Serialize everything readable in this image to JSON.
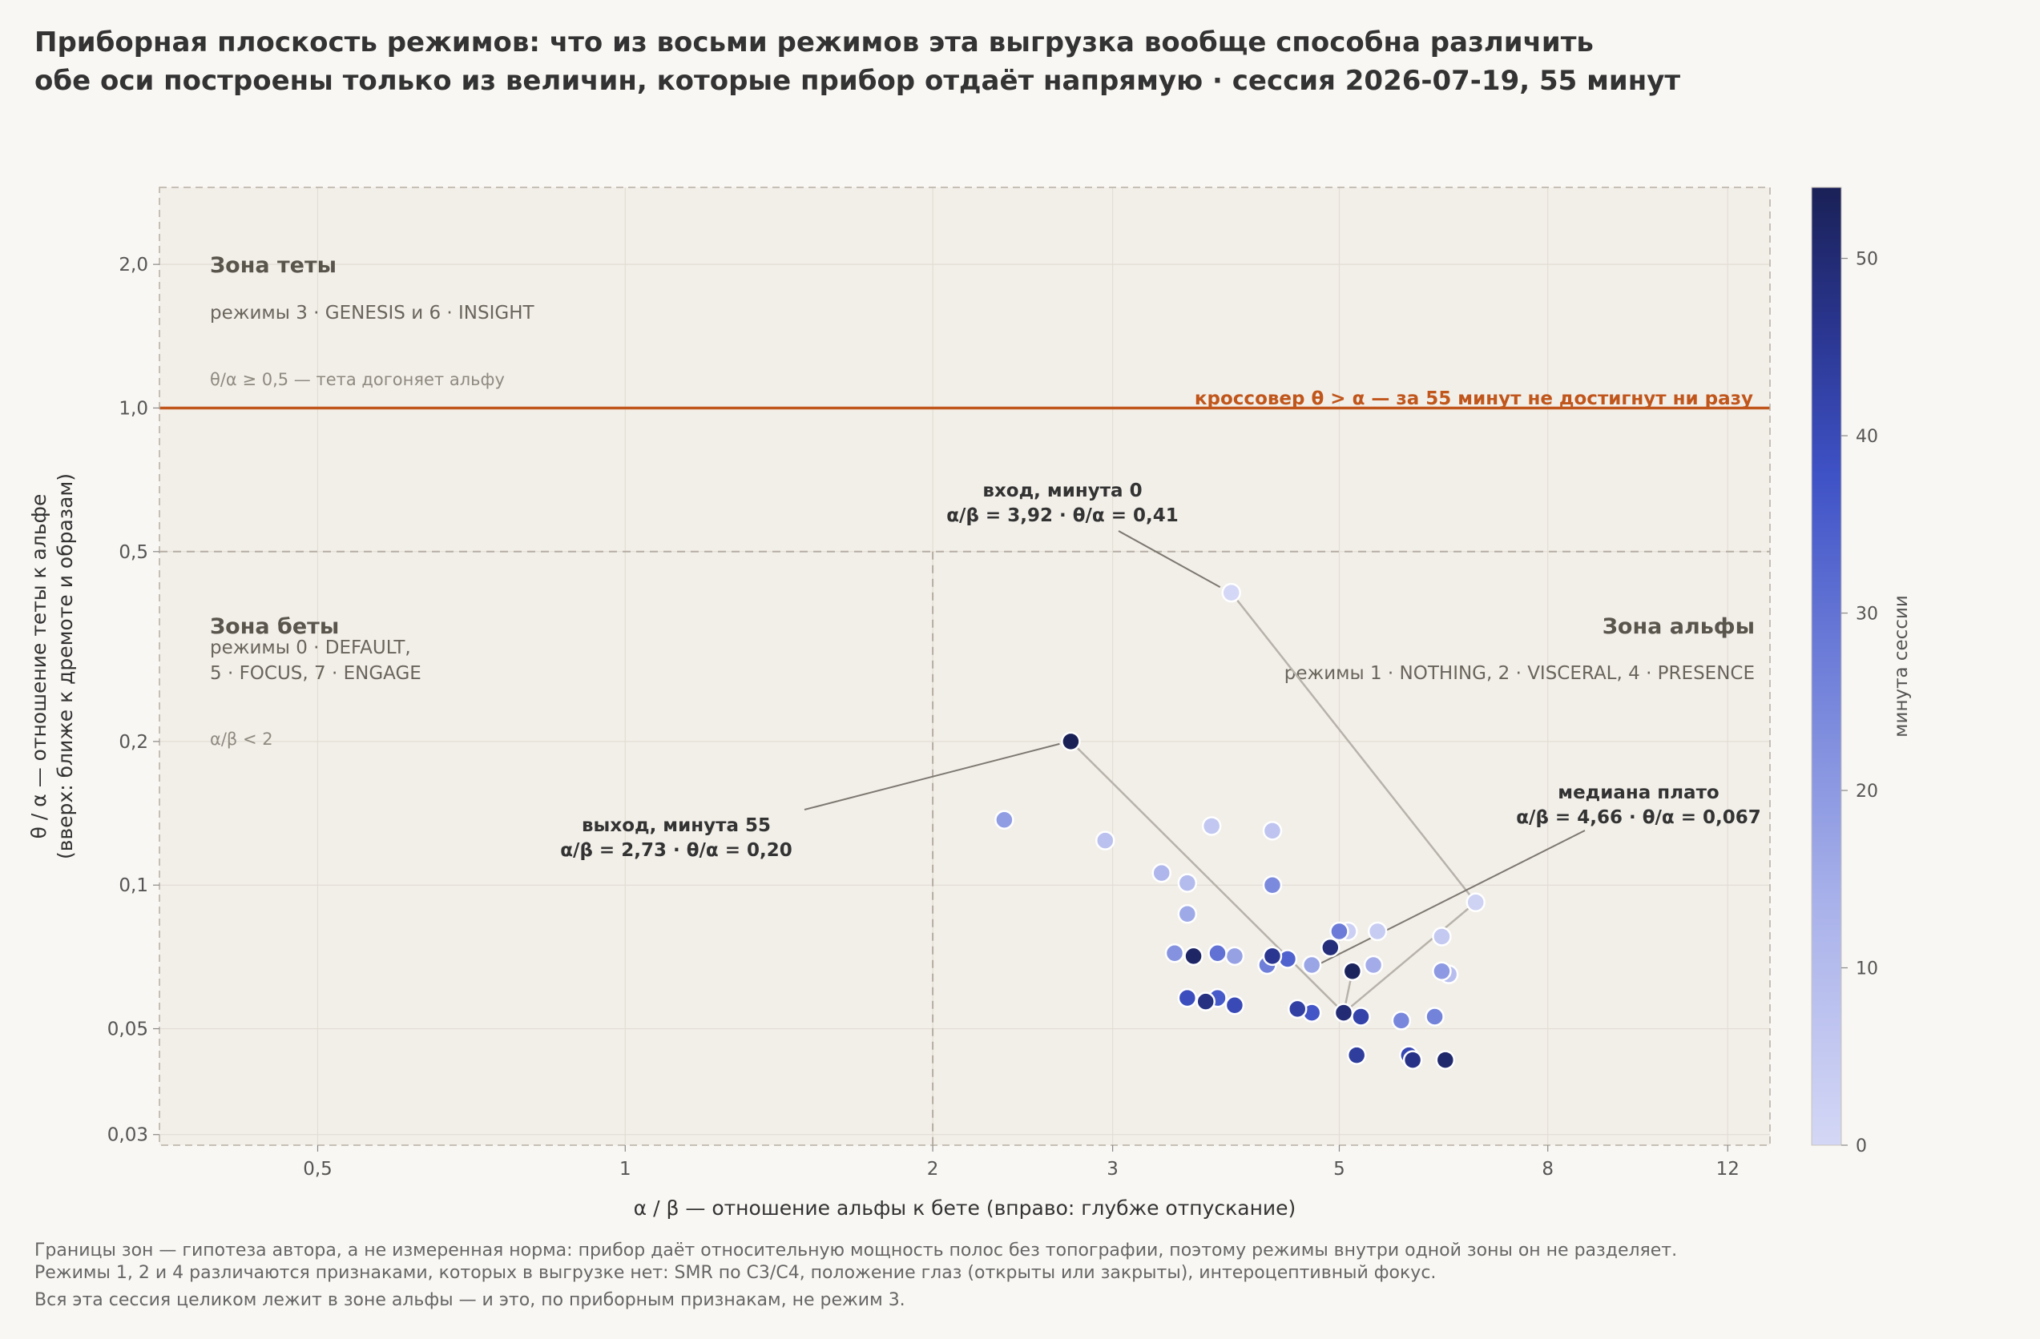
{
  "title": {
    "line1": "Приборная плоскость режимов: что из восьми режимов эта выгрузка вообще способна различить",
    "line2": "обе оси построены только из величин, которые прибор отдаёт напрямую · сессия 2026-07-19, 55 минут"
  },
  "colors": {
    "background": "#f9f7f3",
    "plot_bg": "#f2efe9",
    "crossover": "#c0561b",
    "colormap": [
      "#d4d7f5",
      "#8c98e0",
      "#4a5fcf",
      "#2d3b9c",
      "#1a2157"
    ]
  },
  "zones": {
    "theta": {
      "title": "Зона теты",
      "modes": "режимы  3 · GENESIS   и   6 · INSIGHT",
      "rule": "θ/α ≥ 0,5 — тета догоняет альфу"
    },
    "beta": {
      "title": "Зона беты",
      "modes_line1": "режимы  0 · DEFAULT,",
      "modes_line2": "5 · FOCUS,  7 · ENGAGE",
      "rule": "α/β < 2"
    },
    "alpha": {
      "title": "Зона альфы",
      "modes": "режимы  1 · NOTHING,  2 · VISCERAL,  4 · PRESENCE"
    }
  },
  "annotations": {
    "crossover": "кроссовер θ > α — за 55 минут не достигнут ни разу",
    "entry_line1": "вход, минута 0",
    "entry_line2": "α/β = 3,92 · θ/α = 0,41",
    "exit_line1": "выход, минута 55",
    "exit_line2": "α/β = 2,73 · θ/α = 0,20",
    "median_line1": "медиана плато",
    "median_line2": "α/β = 4,66 · θ/α = 0,067"
  },
  "footnote": {
    "line1": "Границы зон — гипотеза автора, а не измеренная норма: прибор даёт относительную мощность полос без топографии, поэтому режимы внутри одной зоны он не разделяет.",
    "line2": "Режимы 1, 2 и 4 различаются признаками, которых в выгрузке нет: SMR по C3/C4, положение глаз (открыты или закрыты), интероцептивный фокус.",
    "line3": "Вся эта сессия целиком лежит в зоне альфы — и это, по приборным признакам, не режим 3."
  },
  "chart_data": {
    "type": "scatter",
    "xlabel": "α / β  —  отношение альфы к бете   (вправо: глубже отпускание)",
    "ylabel_line1": "θ / α  —  отношение теты к альфе",
    "ylabel_line2": "(вверх: ближе к дремоте и образам)",
    "x_scale": "log",
    "y_scale": "log",
    "xlim": [
      0.35,
      13.2
    ],
    "ylim": [
      0.0285,
      2.9
    ],
    "x_ticks": [
      0.5,
      1,
      2,
      3,
      5,
      8,
      12
    ],
    "x_tick_labels": [
      "0,5",
      "1",
      "2",
      "3",
      "5",
      "8",
      "12"
    ],
    "y_ticks": [
      0.03,
      0.05,
      0.1,
      0.2,
      0.5,
      1.0,
      2.0
    ],
    "y_tick_labels": [
      "0,03",
      "0,05",
      "0,1",
      "0,2",
      "0,5",
      "1,0",
      "2,0"
    ],
    "grid": true,
    "zone_boundaries": {
      "x": 2,
      "y": 0.5
    },
    "crossover_y": 1.0,
    "colorbar": {
      "label": "минута сессии",
      "min": 0,
      "max": 54,
      "ticks": [
        0,
        10,
        20,
        30,
        40,
        50
      ],
      "tick_labels": [
        "0",
        "10",
        "20",
        "30",
        "40",
        "50"
      ]
    },
    "series": [
      {
        "points": [
          {
            "x": 3.92,
            "y": 0.41,
            "c": 0
          },
          {
            "x": 6.8,
            "y": 0.092,
            "c": 2
          },
          {
            "x": 5.1,
            "y": 0.08,
            "c": 3
          },
          {
            "x": 5.45,
            "y": 0.08,
            "c": 4
          },
          {
            "x": 6.3,
            "y": 0.078,
            "c": 5
          },
          {
            "x": 3.75,
            "y": 0.133,
            "c": 6
          },
          {
            "x": 4.3,
            "y": 0.13,
            "c": 7
          },
          {
            "x": 2.95,
            "y": 0.124,
            "c": 8
          },
          {
            "x": 6.4,
            "y": 0.065,
            "c": 9
          },
          {
            "x": 3.55,
            "y": 0.101,
            "c": 10
          },
          {
            "x": 3.35,
            "y": 0.106,
            "c": 12
          },
          {
            "x": 5.4,
            "y": 0.068,
            "c": 15
          },
          {
            "x": 3.55,
            "y": 0.087,
            "c": 16
          },
          {
            "x": 4.7,
            "y": 0.068,
            "c": 17
          },
          {
            "x": 3.95,
            "y": 0.071,
            "c": 18
          },
          {
            "x": 2.35,
            "y": 0.137,
            "c": 19
          },
          {
            "x": 6.3,
            "y": 0.066,
            "c": 20
          },
          {
            "x": 3.45,
            "y": 0.072,
            "c": 22
          },
          {
            "x": 4.3,
            "y": 0.1,
            "c": 24
          },
          {
            "x": 5.75,
            "y": 0.052,
            "c": 25
          },
          {
            "x": 6.2,
            "y": 0.053,
            "c": 26
          },
          {
            "x": 4.25,
            "y": 0.068,
            "c": 27
          },
          {
            "x": 5.0,
            "y": 0.08,
            "c": 28
          },
          {
            "x": 3.8,
            "y": 0.072,
            "c": 30
          },
          {
            "x": 4.45,
            "y": 0.07,
            "c": 34
          },
          {
            "x": 3.8,
            "y": 0.058,
            "c": 36
          },
          {
            "x": 4.7,
            "y": 0.054,
            "c": 37
          },
          {
            "x": 3.55,
            "y": 0.058,
            "c": 39
          },
          {
            "x": 3.95,
            "y": 0.056,
            "c": 40
          },
          {
            "x": 5.85,
            "y": 0.044,
            "c": 41
          },
          {
            "x": 5.25,
            "y": 0.053,
            "c": 42
          },
          {
            "x": 4.55,
            "y": 0.055,
            "c": 43
          },
          {
            "x": 5.2,
            "y": 0.044,
            "c": 44
          },
          {
            "x": 5.15,
            "y": 0.066,
            "c": 45
          },
          {
            "x": 4.3,
            "y": 0.071,
            "c": 46
          },
          {
            "x": 5.9,
            "y": 0.043,
            "c": 47
          },
          {
            "x": 3.7,
            "y": 0.057,
            "c": 48
          },
          {
            "x": 4.9,
            "y": 0.074,
            "c": 49
          },
          {
            "x": 5.05,
            "y": 0.054,
            "c": 50
          },
          {
            "x": 6.35,
            "y": 0.043,
            "c": 51
          },
          {
            "x": 3.6,
            "y": 0.071,
            "c": 52
          },
          {
            "x": 5.15,
            "y": 0.066,
            "c": 53
          },
          {
            "x": 2.73,
            "y": 0.2,
            "c": 54
          }
        ]
      }
    ],
    "path_highlight": [
      {
        "x": 3.92,
        "y": 0.41
      },
      {
        "x": 6.8,
        "y": 0.092
      },
      {
        "x": 5.05,
        "y": 0.054
      },
      {
        "x": 5.15,
        "y": 0.066
      },
      {
        "x": 5.05,
        "y": 0.054
      },
      {
        "x": 2.73,
        "y": 0.2
      }
    ],
    "median": {
      "x": 4.66,
      "y": 0.067
    }
  }
}
